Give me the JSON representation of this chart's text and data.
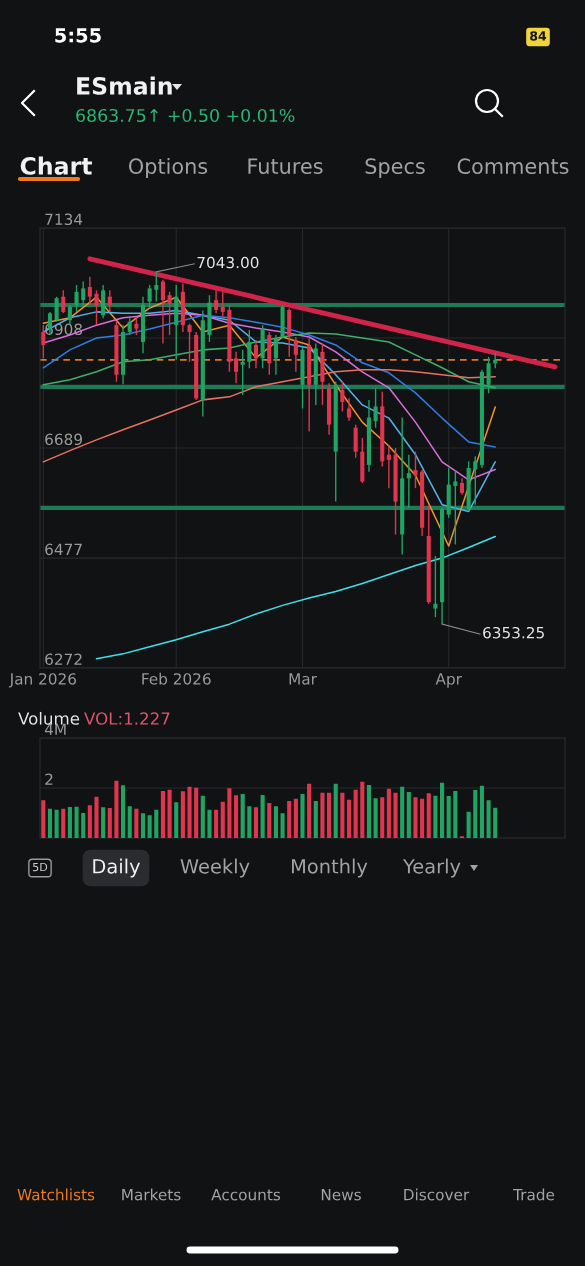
{
  "chart_data": [
    {
      "type": "other",
      "title": "ESmain",
      "subtitle": "6863.75↑ +0.50 +0.01%",
      "annotations": [
        "5:55",
        "84",
        "Chart",
        "Options",
        "Futures",
        "Specs",
        "Comments"
      ]
    },
    {
      "type": "candlestick",
      "log": true,
      "grid": true,
      "ylim": [
        6272,
        7134
      ],
      "yticks": [
        6272,
        6477,
        6689,
        6908,
        7134
      ],
      "categories": [
        "Jan 2026",
        null,
        null,
        null,
        null,
        null,
        null,
        null,
        null,
        null,
        null,
        null,
        null,
        null,
        null,
        null,
        null,
        null,
        null,
        null,
        "Feb 2026",
        null,
        null,
        null,
        null,
        null,
        null,
        null,
        null,
        null,
        null,
        null,
        null,
        null,
        null,
        null,
        null,
        null,
        null,
        "Mar",
        null,
        null,
        null,
        null,
        null,
        null,
        null,
        null,
        null,
        null,
        null,
        null,
        null,
        null,
        null,
        null,
        null,
        null,
        null,
        null,
        null,
        "Apr",
        null,
        null,
        null,
        null,
        null,
        null,
        null,
        null,
        null,
        null,
        null,
        null,
        null,
        null,
        null,
        null,
        null
      ],
      "ohlc": [
        [
          6920,
          6934,
          6867,
          6894
        ],
        [
          6927,
          6961,
          6914,
          6958
        ],
        [
          6944,
          6992,
          6941,
          6989
        ],
        [
          6992,
          7005,
          6958,
          6961
        ],
        [
          6944,
          6975,
          6934,
          6971
        ],
        [
          6975,
          7016,
          6961,
          7002
        ],
        [
          6985,
          7023,
          6975,
          7009
        ],
        [
          7012,
          7033,
          6975,
          6992
        ],
        [
          6998,
          7005,
          6934,
          6975
        ],
        [
          6954,
          7016,
          6948,
          7005
        ],
        [
          6992,
          7005,
          6961,
          6975
        ],
        [
          6934,
          6941,
          6820,
          6834
        ],
        [
          6834,
          6934,
          6815,
          6920
        ],
        [
          6920,
          6948,
          6914,
          6941
        ],
        [
          6937,
          6951,
          6914,
          6927
        ],
        [
          6900,
          6992,
          6877,
          6975
        ],
        [
          6982,
          7016,
          6968,
          7009
        ],
        [
          7006,
          7043,
          6982,
          7016
        ],
        [
          7023,
          7027,
          6897,
          6985
        ],
        [
          6995,
          7002,
          6914,
          6978
        ],
        [
          6934,
          7016,
          6864,
          6992
        ],
        [
          7002,
          7019,
          6920,
          6934
        ],
        [
          6934,
          6937,
          6860,
          6920
        ],
        [
          6914,
          6920,
          6784,
          6787
        ],
        [
          6784,
          6964,
          6751,
          6944
        ],
        [
          6914,
          6995,
          6900,
          6980
        ],
        [
          6985,
          7005,
          6958,
          6965
        ],
        [
          6971,
          7002,
          6951,
          6961
        ],
        [
          6965,
          6975,
          6840,
          6860
        ],
        [
          6867,
          6880,
          6817,
          6840
        ],
        [
          6854,
          6884,
          6794,
          6860
        ],
        [
          6860,
          6924,
          6847,
          6900
        ],
        [
          6894,
          6904,
          6847,
          6867
        ],
        [
          6867,
          6934,
          6847,
          6927
        ],
        [
          6914,
          6920,
          6834,
          6857
        ],
        [
          6867,
          6914,
          6834,
          6907
        ],
        [
          6910,
          6975,
          6907,
          6971
        ],
        [
          6965,
          6968,
          6870,
          6914
        ],
        [
          6904,
          6910,
          6840,
          6874
        ],
        [
          6814,
          6890,
          6767,
          6884
        ],
        [
          6894,
          6907,
          6722,
          6814
        ],
        [
          6814,
          6897,
          6774,
          6887
        ],
        [
          6880,
          6897,
          6774,
          6820
        ],
        [
          6807,
          6817,
          6715,
          6735
        ],
        [
          6682,
          6820,
          6585,
          6814
        ],
        [
          6804,
          6820,
          6761,
          6780
        ],
        [
          6767,
          6787,
          6742,
          6749
        ],
        [
          6729,
          6735,
          6670,
          6682
        ],
        [
          6682,
          6709,
          6621,
          6624
        ],
        [
          6656,
          6784,
          6643,
          6749
        ],
        [
          6742,
          6807,
          6729,
          6771
        ],
        [
          6771,
          6800,
          6653,
          6663
        ],
        [
          6676,
          6695,
          6611,
          6666
        ],
        [
          6676,
          6689,
          6522,
          6585
        ],
        [
          6522,
          6749,
          6484,
          6630
        ],
        [
          6630,
          6676,
          6573,
          6640
        ],
        [
          6646,
          6682,
          6611,
          6636
        ],
        [
          6643,
          6646,
          6519,
          6535
        ],
        [
          6519,
          6579,
          6391,
          6394
        ],
        [
          6382,
          6481,
          6366,
          6391
        ],
        [
          6394,
          6573,
          6353.25,
          6570
        ],
        [
          6560,
          6650,
          6554,
          6618
        ],
        [
          6615,
          6646,
          6503,
          6624
        ],
        [
          6621,
          6630,
          6598,
          6602
        ],
        [
          6570,
          6663,
          6567,
          6650
        ],
        [
          6647,
          6673,
          6579,
          6663
        ],
        [
          6656,
          6844,
          6650,
          6840
        ],
        [
          6814,
          6870,
          6797,
          6857
        ],
        [
          6857,
          6877,
          6847,
          6864
        ],
        null,
        null,
        null,
        null,
        null,
        null,
        null,
        null,
        null,
        null
      ],
      "colors": [
        "#e0354f",
        "#1fa463",
        "#1fa463",
        "#e0354f",
        "#1fa463",
        "#1fa463",
        "#1fa463",
        "#e0354f",
        "#e0354f",
        "#1fa463",
        "#e0354f",
        "#e0354f",
        "#1fa463",
        "#1fa463",
        "#e0354f",
        "#1fa463",
        "#1fa463",
        "#1fa463",
        "#e0354f",
        "#e0354f",
        "#1fa463",
        "#e0354f",
        "#e0354f",
        "#e0354f",
        "#1fa463",
        "#1fa463",
        "#e0354f",
        "#e0354f",
        "#e0354f",
        "#e0354f",
        "#1fa463",
        "#1fa463",
        "#e0354f",
        "#1fa463",
        "#e0354f",
        "#1fa463",
        "#1fa463",
        "#e0354f",
        "#e0354f",
        "#1fa463",
        "#e0354f",
        "#1fa463",
        "#e0354f",
        "#e0354f",
        "#1fa463",
        "#e0354f",
        "#e0354f",
        "#e0354f",
        "#e0354f",
        "#1fa463",
        "#1fa463",
        "#e0354f",
        "#e0354f",
        "#e0354f",
        "#1fa463",
        "#1fa463",
        "#e0354f",
        "#e0354f",
        "#e0354f",
        "#1fa463",
        "#1fa463",
        "#1fa463",
        "#1fa463",
        "#e0354f",
        "#1fa463",
        "#1fa463",
        "#1fa463",
        "#1fa463",
        "#1fa463",
        null,
        null,
        null,
        null,
        null,
        null,
        null,
        null,
        null,
        null
      ],
      "series": [
        {
          "type": "line",
          "color": "#f0932b",
          "values": [
            6938,
            null,
            null,
            null,
            6949,
            null,
            null,
            null,
            6991,
            null,
            null,
            null,
            6928,
            null,
            null,
            null,
            6969,
            null,
            null,
            null,
            6991,
            null,
            null,
            null,
            6920,
            null,
            null,
            null,
            6934,
            null,
            null,
            null,
            6868,
            null,
            null,
            null,
            6910,
            null,
            null,
            null,
            6894,
            null,
            null,
            null,
            6814,
            null,
            null,
            null,
            6740,
            null,
            null,
            null,
            6693,
            null,
            null,
            null,
            6636,
            null,
            null,
            null,
            null,
            6500,
            null,
            null,
            null,
            null,
            null,
            null,
            6770,
            null,
            null,
            null,
            null,
            null,
            null,
            null,
            null,
            null,
            null
          ]
        },
        {
          "type": "line",
          "color": "#4fb3e8",
          "values": [
            6920,
            null,
            null,
            null,
            6949,
            null,
            null,
            null,
            6961,
            null,
            null,
            null,
            6958,
            null,
            null,
            null,
            6958,
            null,
            null,
            null,
            6964,
            null,
            null,
            null,
            6954,
            null,
            null,
            null,
            6944,
            null,
            null,
            null,
            6900,
            null,
            null,
            null,
            6898,
            null,
            null,
            null,
            6888,
            null,
            null,
            null,
            6834,
            null,
            null,
            null,
            6774,
            null,
            null,
            null,
            6748,
            null,
            null,
            null,
            6676,
            null,
            null,
            null,
            6579,
            null,
            null,
            null,
            6566,
            null,
            null,
            null,
            6662,
            null,
            null,
            null,
            null,
            null,
            null,
            null,
            null,
            null,
            null
          ]
        },
        {
          "type": "line",
          "color": "#d86fd8",
          "values": [
            6898,
            null,
            null,
            null,
            6914,
            null,
            null,
            null,
            6934,
            null,
            null,
            null,
            6949,
            null,
            null,
            null,
            6954,
            null,
            null,
            null,
            6958,
            null,
            null,
            null,
            6954,
            null,
            null,
            null,
            6938,
            null,
            null,
            null,
            6928,
            null,
            null,
            null,
            6920,
            null,
            null,
            null,
            6910,
            null,
            null,
            null,
            6880,
            null,
            null,
            null,
            6840,
            null,
            null,
            null,
            6808,
            null,
            null,
            null,
            6740,
            null,
            null,
            null,
            6662,
            null,
            null,
            null,
            6627,
            null,
            null,
            null,
            6647,
            null,
            null,
            null,
            null,
            null,
            null,
            null,
            null,
            null,
            null
          ]
        },
        {
          "type": "line",
          "color": "#2f7de1",
          "values": [
            6848,
            null,
            null,
            null,
            6884,
            null,
            null,
            null,
            6908,
            null,
            null,
            null,
            6914,
            null,
            null,
            null,
            6926,
            null,
            null,
            null,
            6940,
            null,
            null,
            null,
            6954,
            null,
            null,
            null,
            6949,
            null,
            null,
            null,
            6940,
            null,
            null,
            null,
            6930,
            null,
            null,
            null,
            6914,
            null,
            null,
            null,
            6894,
            null,
            null,
            null,
            6858,
            null,
            null,
            null,
            6838,
            null,
            null,
            null,
            6798,
            null,
            null,
            null,
            6748,
            null,
            null,
            null,
            6701,
            null,
            null,
            null,
            6691,
            null,
            null,
            null,
            null,
            null,
            null,
            null,
            null,
            null,
            null
          ]
        },
        {
          "type": "line",
          "color": "#3fae6a",
          "values": [
            6814,
            null,
            null,
            null,
            6824,
            null,
            null,
            null,
            6840,
            null,
            null,
            null,
            6860,
            null,
            null,
            null,
            6864,
            null,
            null,
            null,
            6874,
            null,
            null,
            null,
            6884,
            null,
            null,
            null,
            6888,
            null,
            null,
            null,
            6900,
            null,
            null,
            null,
            6910,
            null,
            null,
            null,
            6918,
            null,
            null,
            null,
            6916,
            null,
            null,
            null,
            6908,
            null,
            null,
            null,
            6900,
            null,
            null,
            null,
            6874,
            null,
            null,
            null,
            6848,
            null,
            null,
            null,
            6820,
            null,
            null,
            null,
            6808,
            null,
            null,
            null,
            null,
            null,
            null,
            null,
            null,
            null,
            null
          ]
        },
        {
          "type": "line",
          "color": "#e8715f",
          "values": [
            6662,
            null,
            null,
            null,
            6684,
            null,
            null,
            null,
            6705,
            null,
            null,
            null,
            6725,
            null,
            null,
            null,
            6744,
            null,
            null,
            null,
            6764,
            null,
            null,
            null,
            6784,
            null,
            null,
            null,
            6790,
            null,
            null,
            null,
            6810,
            null,
            null,
            null,
            6820,
            null,
            null,
            null,
            6830,
            null,
            null,
            null,
            6840,
            null,
            null,
            null,
            6844,
            null,
            null,
            null,
            6844,
            null,
            null,
            null,
            6840,
            null,
            null,
            null,
            6834,
            null,
            null,
            null,
            6828,
            null,
            null,
            null,
            6830,
            null,
            null,
            null,
            null,
            null,
            null,
            null,
            null,
            null,
            null
          ]
        },
        {
          "type": "line",
          "color": "#3fe0e8",
          "values": [
            null,
            null,
            null,
            null,
            null,
            null,
            null,
            null,
            6289,
            null,
            null,
            null,
            6298,
            null,
            null,
            null,
            6311,
            null,
            null,
            null,
            6324,
            null,
            null,
            null,
            6339,
            null,
            null,
            null,
            6353,
            null,
            null,
            null,
            6372,
            null,
            null,
            null,
            6388,
            null,
            null,
            null,
            6402,
            null,
            null,
            null,
            6414,
            null,
            null,
            null,
            6429,
            null,
            null,
            null,
            6446,
            null,
            null,
            null,
            6463,
            null,
            null,
            null,
            6477,
            null,
            null,
            null,
            6497,
            null,
            null,
            null,
            6518,
            null,
            null,
            null,
            null,
            null,
            null,
            null,
            null,
            null,
            null
          ]
        },
        {
          "type": "line",
          "color": "#d2234a",
          "values": [
            null,
            null,
            null,
            null,
            null,
            null,
            null,
            7070,
            null,
            null,
            null,
            null,
            null,
            null,
            null,
            null,
            null,
            null,
            null,
            null,
            null,
            null,
            null,
            null,
            null,
            null,
            null,
            null,
            null,
            null,
            null,
            null,
            null,
            null,
            null,
            null,
            null,
            null,
            null,
            null,
            null,
            null,
            null,
            null,
            null,
            null,
            null,
            null,
            null,
            null,
            null,
            null,
            null,
            null,
            null,
            null,
            null,
            null,
            null,
            null,
            null,
            null,
            null,
            null,
            null,
            null,
            null,
            null,
            null,
            null,
            null,
            null,
            null,
            null,
            null,
            null,
            null,
            6850,
            null
          ]
        }
      ],
      "ref_lines": [
        {
          "axis": "y",
          "value": 6975,
          "color": "#1e7a55"
        },
        {
          "axis": "y",
          "value": 6810,
          "color": "#1e7a55"
        },
        {
          "axis": "y",
          "value": 6573,
          "color": "#1e7a55"
        },
        {
          "axis": "y",
          "value": 6863.75,
          "color": "#d9772b",
          "line_style": "dashed"
        }
      ],
      "annotations": [
        "7043.00",
        "6353.25"
      ]
    },
    {
      "type": "bar",
      "title": "Volume",
      "subtitle": "VOL:1.227",
      "grid": "y",
      "tick_labels": "y",
      "ylim": [
        0,
        4
      ],
      "yticks": [
        2,
        {
          "value": 4,
          "label": "4M"
        }
      ],
      "categories": [
        null,
        null,
        null,
        null,
        null,
        null,
        null,
        null,
        null,
        null,
        null,
        null,
        null,
        null,
        null,
        null,
        null,
        null,
        null,
        null,
        null,
        null,
        null,
        null,
        null,
        null,
        null,
        null,
        null,
        null,
        null,
        null,
        null,
        null,
        null,
        null,
        null,
        null,
        null,
        null,
        null,
        null,
        null,
        null,
        null,
        null,
        null,
        null,
        null,
        null,
        null,
        null,
        null,
        null,
        null,
        null,
        null,
        null,
        null,
        null,
        null,
        null,
        null,
        null,
        null,
        null,
        null,
        null,
        null,
        null,
        null,
        null,
        null,
        null,
        null,
        null,
        null,
        null,
        null
      ],
      "values": [
        1.51,
        1.17,
        1.13,
        1.17,
        1.24,
        1.25,
        1.0,
        1.31,
        1.65,
        1.23,
        1.2,
        2.29,
        2.11,
        1.27,
        1.17,
        0.99,
        0.91,
        1.13,
        1.88,
        1.93,
        1.43,
        1.87,
        2.05,
        2.01,
        1.69,
        1.13,
        1.13,
        1.45,
        1.99,
        1.71,
        1.76,
        1.27,
        1.23,
        1.72,
        1.4,
        1.27,
        0.99,
        1.48,
        1.57,
        1.76,
        2.17,
        1.48,
        1.81,
        1.81,
        2.17,
        1.81,
        1.53,
        1.93,
        2.25,
        2.12,
        1.59,
        1.63,
        1.97,
        1.81,
        2.05,
        1.84,
        1.63,
        1.57,
        1.79,
        1.69,
        2.21,
        1.68,
        1.88,
        0.07,
        1.05,
        1.92,
        2.09,
        1.51,
        1.21,
        null,
        null,
        null,
        null,
        null,
        null,
        null,
        null,
        null,
        null
      ],
      "colors": [
        "#e0354f",
        "#1fa463",
        "#1fa463",
        "#e0354f",
        "#1fa463",
        "#1fa463",
        "#1fa463",
        "#e0354f",
        "#e0354f",
        "#1fa463",
        "#e0354f",
        "#e0354f",
        "#1fa463",
        "#1fa463",
        "#e0354f",
        "#1fa463",
        "#1fa463",
        "#1fa463",
        "#e0354f",
        "#e0354f",
        "#1fa463",
        "#e0354f",
        "#e0354f",
        "#e0354f",
        "#1fa463",
        "#1fa463",
        "#e0354f",
        "#e0354f",
        "#e0354f",
        "#e0354f",
        "#1fa463",
        "#1fa463",
        "#e0354f",
        "#1fa463",
        "#e0354f",
        "#1fa463",
        "#1fa463",
        "#e0354f",
        "#e0354f",
        "#1fa463",
        "#e0354f",
        "#1fa463",
        "#e0354f",
        "#e0354f",
        "#1fa463",
        "#e0354f",
        "#e0354f",
        "#e0354f",
        "#e0354f",
        "#1fa463",
        "#1fa463",
        "#e0354f",
        "#e0354f",
        "#e0354f",
        "#1fa463",
        "#1fa463",
        "#e0354f",
        "#e0354f",
        "#e0354f",
        "#1fa463",
        "#1fa463",
        "#1fa463",
        "#1fa463",
        "#e0354f",
        "#1fa463",
        "#1fa463",
        "#1fa463",
        "#1fa463",
        "#1fa463",
        null,
        null,
        null,
        null,
        null,
        null,
        null,
        null,
        null,
        null
      ]
    },
    {
      "type": "other",
      "annotations": [
        "5D",
        "Daily",
        "Weekly",
        "Monthly",
        "Yearly",
        "Watchlists",
        "Markets",
        "Accounts",
        "News",
        "Discover",
        "Trade"
      ]
    }
  ]
}
